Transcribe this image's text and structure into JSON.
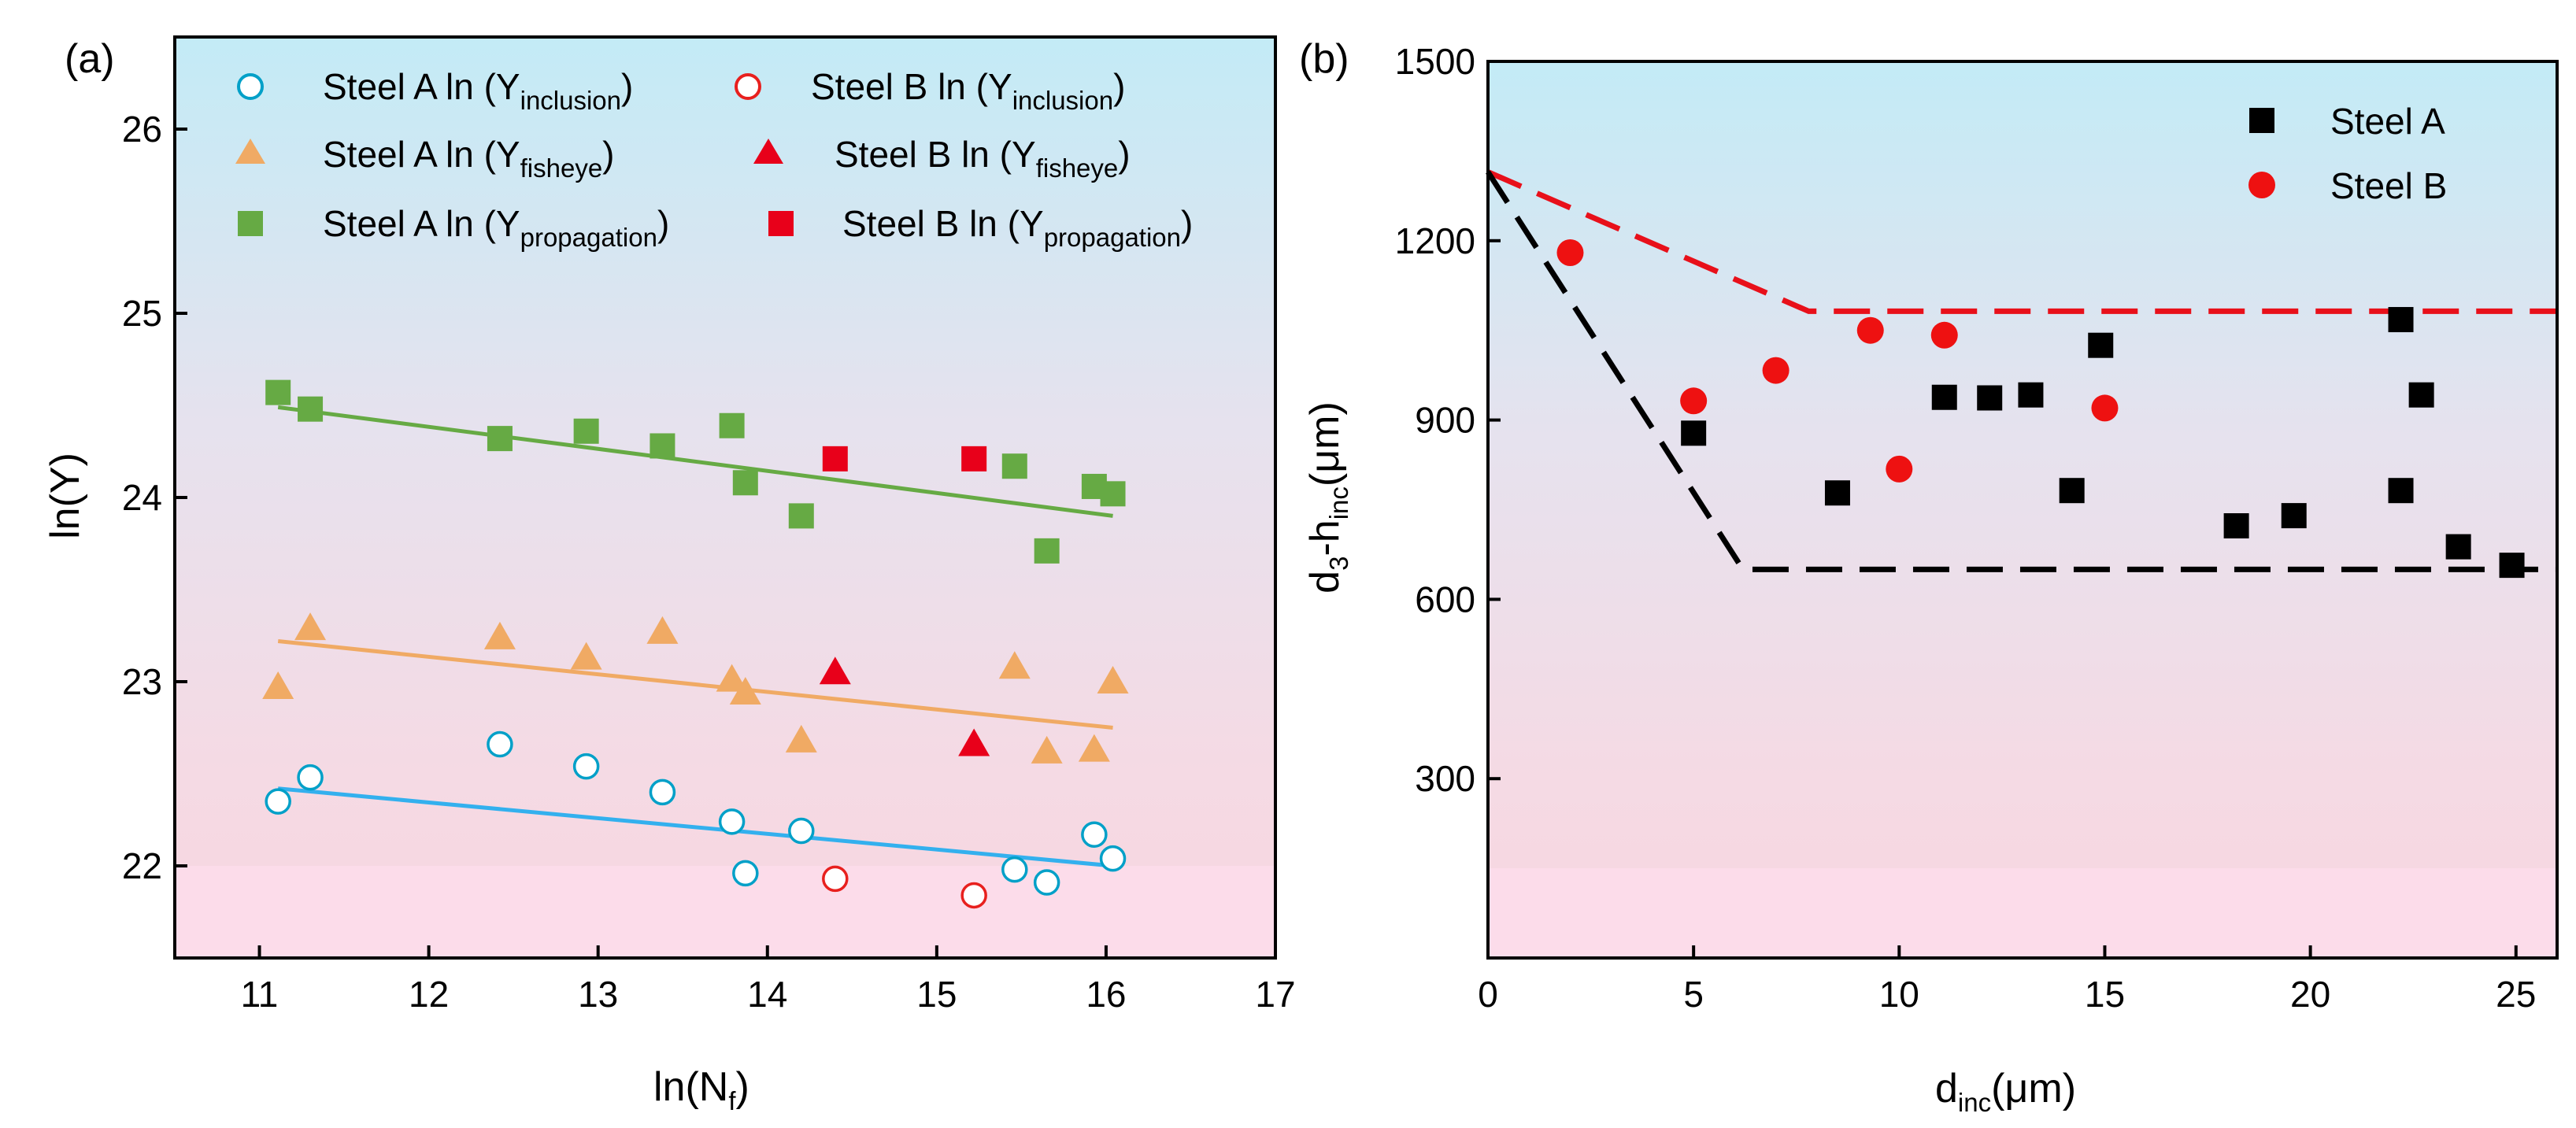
{
  "chart_data": [
    {
      "panel": "(a)",
      "type": "scatter",
      "xlabel": "ln(N",
      "xlabel_sub": "f",
      "xlabel_close": ")",
      "ylabel": "ln(Y)",
      "xlim": [
        10.5,
        17
      ],
      "ylim": [
        21.5,
        26.5
      ],
      "xticks": [
        "11",
        "12",
        "13",
        "14",
        "15",
        "16",
        "17"
      ],
      "yticks": [
        "22",
        "23",
        "24",
        "25",
        "26"
      ],
      "legend": [
        {
          "pre": "Steel A ln (Y",
          "sub": "inclusion",
          "post": ")"
        },
        {
          "pre": "Steel B ln (Y",
          "sub": "inclusion",
          "post": ")"
        },
        {
          "pre": "Steel A ln (Y",
          "sub": "fisheye",
          "post": ")"
        },
        {
          "pre": "Steel B ln (Y",
          "sub": "fisheye",
          "post": ")"
        },
        {
          "pre": "Steel A ln (Y",
          "sub": "propagation",
          "post": ")"
        },
        {
          "pre": "Steel B ln (Y",
          "sub": "propagation",
          "post": ")"
        }
      ],
      "series": [
        {
          "name": "Steel A ln (Y_inclusion)",
          "marker": "open-circle",
          "color": "#00a0c8",
          "x": [
            11.11,
            11.3,
            12.42,
            12.93,
            13.38,
            13.79,
            13.87,
            14.2,
            15.46,
            15.65,
            15.93,
            16.04
          ],
          "y": [
            22.35,
            22.48,
            22.66,
            22.54,
            22.4,
            22.24,
            21.96,
            22.19,
            21.98,
            21.91,
            22.17,
            22.04
          ]
        },
        {
          "name": "Steel B ln (Y_inclusion)",
          "marker": "open-circle",
          "color": "#e8201e",
          "x": [
            14.4,
            15.22
          ],
          "y": [
            21.93,
            21.84
          ]
        },
        {
          "name": "Steel A ln (Y_fisheye)",
          "marker": "triangle",
          "color": "#f0aa64",
          "x": [
            11.11,
            11.3,
            12.42,
            12.93,
            13.38,
            13.79,
            13.87,
            14.2,
            15.46,
            15.65,
            15.93,
            16.04
          ],
          "y": [
            22.97,
            23.29,
            23.24,
            23.13,
            23.27,
            23.01,
            22.94,
            22.68,
            23.08,
            22.62,
            22.63,
            23.0
          ]
        },
        {
          "name": "Steel B ln (Y_fisheye)",
          "marker": "triangle",
          "color": "#e8001a",
          "x": [
            14.4,
            15.22
          ],
          "y": [
            23.05,
            22.66
          ]
        },
        {
          "name": "Steel A ln (Y_propagation)",
          "marker": "square",
          "color": "#66aa44",
          "x": [
            11.11,
            11.3,
            12.42,
            12.93,
            13.38,
            13.79,
            13.87,
            14.2,
            15.46,
            15.65,
            15.93,
            16.04
          ],
          "y": [
            24.57,
            24.48,
            24.32,
            24.36,
            24.28,
            24.39,
            24.08,
            23.9,
            24.17,
            23.71,
            24.06,
            24.02
          ]
        },
        {
          "name": "Steel B ln (Y_propagation)",
          "marker": "square",
          "color": "#e8001a",
          "x": [
            14.4,
            15.22
          ],
          "y": [
            24.21,
            24.21
          ]
        }
      ],
      "fit_lines": [
        {
          "name": "propagation fit",
          "color": "#66aa44",
          "x": [
            11.11,
            16.04
          ],
          "y": [
            24.49,
            23.9
          ]
        },
        {
          "name": "fisheye fit",
          "color": "#f0aa64",
          "x": [
            11.11,
            16.04
          ],
          "y": [
            23.22,
            22.75
          ]
        },
        {
          "name": "inclusion fit",
          "color": "#33b0ee",
          "x": [
            11.11,
            16.04
          ],
          "y": [
            22.42,
            22.0
          ]
        }
      ]
    },
    {
      "panel": "(b)",
      "type": "scatter",
      "xlabel": "d",
      "xlabel_sub": "inc",
      "xlabel_close": "(μm)",
      "ylabel_pre": "d",
      "ylabel_sub1": "3",
      "ylabel_mid": "-h",
      "ylabel_sub2": "inc",
      "ylabel_post": "(μm)",
      "xlim": [
        0,
        26
      ],
      "ylim": [
        0,
        1500
      ],
      "xticks": [
        "0",
        "5",
        "10",
        "15",
        "20",
        "25"
      ],
      "yticks": [
        "300",
        "600",
        "900",
        "1200",
        "1500"
      ],
      "legend": [
        {
          "label": "Steel A"
        },
        {
          "label": "Steel B"
        }
      ],
      "series": [
        {
          "name": "Steel A",
          "marker": "square",
          "color": "#000000",
          "x": [
            5.0,
            8.5,
            11.1,
            12.2,
            13.2,
            14.2,
            14.9,
            18.2,
            19.6,
            22.2,
            22.2,
            22.7,
            23.6,
            24.9
          ],
          "y": [
            878,
            778,
            938,
            937,
            942,
            782,
            1025,
            723,
            740,
            1068,
            782,
            942,
            688,
            657
          ]
        },
        {
          "name": "Steel B",
          "marker": "circle",
          "color": "#ee1111",
          "x": [
            2.0,
            5.0,
            7.0,
            9.3,
            10.0,
            11.1,
            15.0
          ],
          "y": [
            1180,
            932,
            983,
            1050,
            818,
            1042,
            920
          ]
        }
      ],
      "boundary_lines": [
        {
          "name": "Steel B bound",
          "color": "#e8101a",
          "x": [
            0,
            7.8,
            26
          ],
          "y": [
            1315,
            1082,
            1082
          ]
        },
        {
          "name": "Steel A bound",
          "color": "#000000",
          "x": [
            0,
            6.2,
            26
          ],
          "y": [
            1315,
            650,
            650
          ]
        }
      ]
    }
  ]
}
